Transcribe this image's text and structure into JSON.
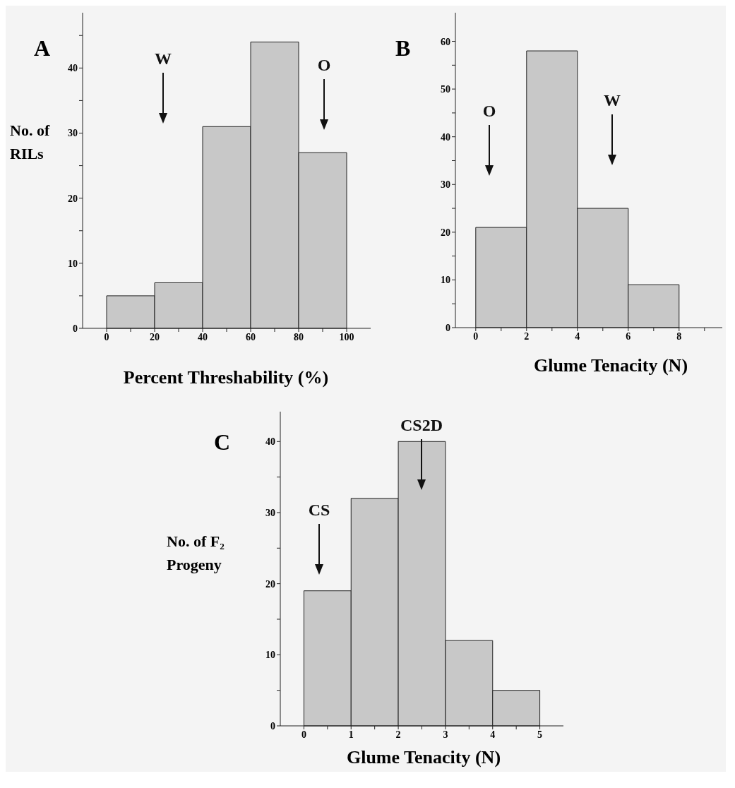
{
  "chart_data": [
    {
      "type": "histogram",
      "xlabel": "Percent Threshability (%)",
      "ylabel": "No. of RILs",
      "bins": [
        0,
        20,
        40,
        60,
        80,
        100
      ],
      "values": [
        5,
        7,
        31,
        44,
        27
      ],
      "color": "#c8c8c8",
      "xlim": [
        -10,
        110
      ],
      "ylim": [
        0,
        48.5
      ],
      "xticks": [
        0,
        {
          "value": 10,
          "label": null
        },
        20,
        {
          "value": 30,
          "label": null
        },
        40,
        {
          "value": 50,
          "label": null
        },
        60,
        {
          "value": 70,
          "label": null
        },
        80,
        {
          "value": 90,
          "label": null
        },
        100
      ],
      "yticks": [
        0,
        {
          "value": 5,
          "label": null
        },
        10,
        {
          "value": 15,
          "label": null
        },
        20,
        {
          "value": 25,
          "label": null
        },
        30,
        {
          "value": 35,
          "label": null
        },
        40,
        {
          "value": 45,
          "label": null
        }
      ],
      "annotations": [
        "A",
        "W",
        "O"
      ]
    },
    {
      "type": "histogram",
      "xlabel": "Glume Tenacity (N)",
      "bins": [
        0,
        2,
        4,
        6,
        8
      ],
      "values": [
        21,
        58,
        25,
        9
      ],
      "color": "#c8c8c8",
      "xlim": [
        -0.8,
        9.7
      ],
      "ylim": [
        0,
        66
      ],
      "xticks": [
        0,
        {
          "value": 1,
          "label": null
        },
        2,
        {
          "value": 3,
          "label": null
        },
        4,
        {
          "value": 5,
          "label": null
        },
        6,
        {
          "value": 7,
          "label": null
        },
        8,
        {
          "value": 9,
          "label": null
        }
      ],
      "yticks": [
        0,
        {
          "value": 5,
          "label": null
        },
        10,
        {
          "value": 15,
          "label": null
        },
        20,
        {
          "value": 25,
          "label": null
        },
        30,
        {
          "value": 35,
          "label": null
        },
        40,
        {
          "value": 45,
          "label": null
        },
        50,
        {
          "value": 55,
          "label": null
        },
        60
      ],
      "annotations": [
        "B",
        "O",
        "W"
      ]
    },
    {
      "type": "histogram",
      "xlabel": "Glume Tenacity (N)",
      "ylabel": "No. of F₂ Progeny",
      "bins": [
        0,
        1,
        2,
        3,
        4,
        5
      ],
      "values": [
        19,
        32,
        40,
        12,
        5
      ],
      "color": "#c8c8c8",
      "xlim": [
        -0.5,
        5.5
      ],
      "ylim": [
        0,
        44.2
      ],
      "xticks": [
        0,
        {
          "value": 0.5,
          "label": null
        },
        1,
        {
          "value": 1.5,
          "label": null
        },
        2,
        {
          "value": 2.5,
          "label": null
        },
        3,
        {
          "value": 3.5,
          "label": null
        },
        4,
        {
          "value": 4.5,
          "label": null
        },
        5
      ],
      "yticks": [
        0,
        {
          "value": 5,
          "label": null
        },
        10,
        {
          "value": 15,
          "label": null
        },
        20,
        {
          "value": 25,
          "label": null
        },
        30,
        {
          "value": 35,
          "label": null
        },
        40
      ],
      "annotations": [
        "C",
        "CS",
        "CS2D"
      ]
    }
  ]
}
